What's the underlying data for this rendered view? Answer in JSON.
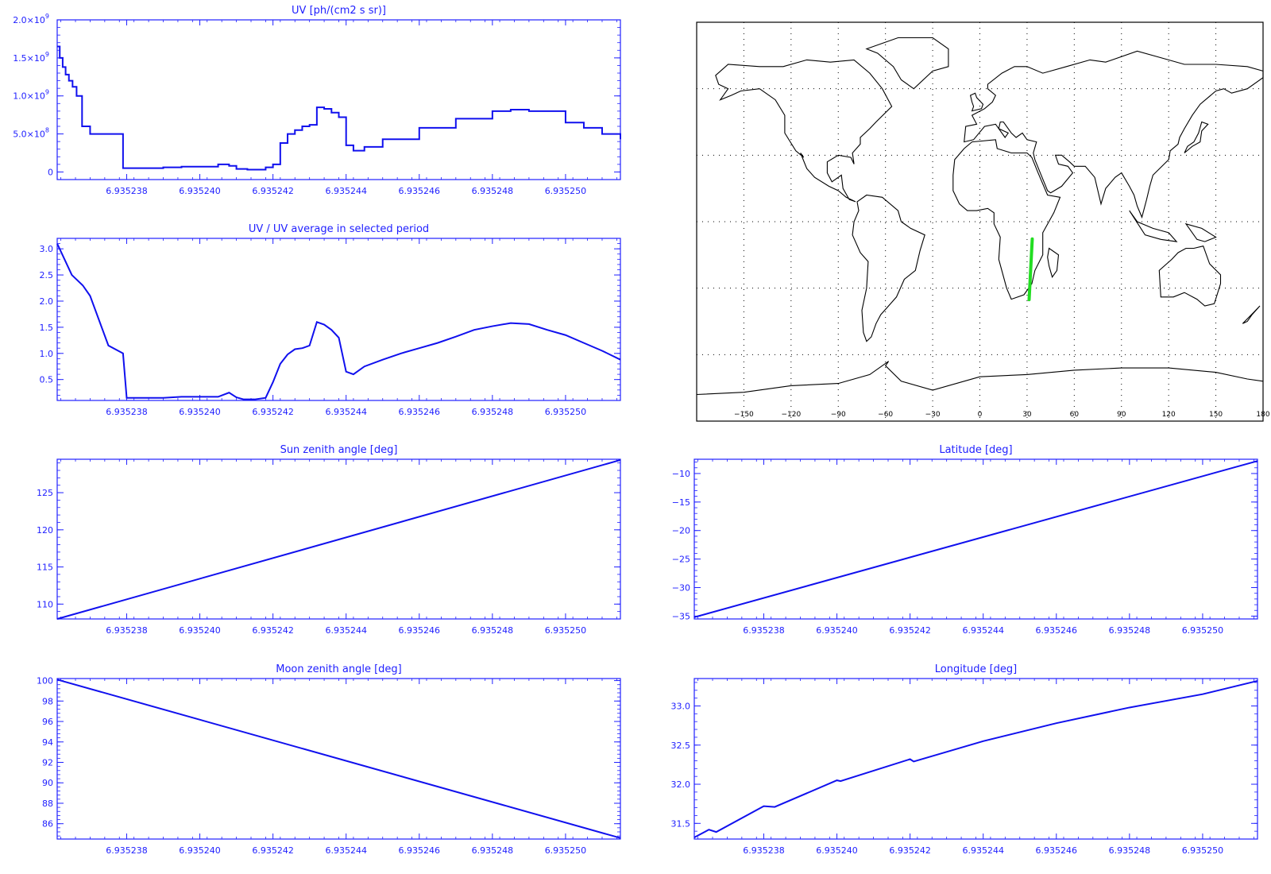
{
  "colors": {
    "axis": "#2020ff",
    "line": "#1010ee",
    "track": "#22dd22",
    "map": "#000000"
  },
  "chart_data": [
    {
      "type": "line",
      "step": true,
      "title": "UV [ph/(cm2 s sr)]",
      "xlim": [
        6.9352361,
        6.9352515
      ],
      "ylim": [
        -0.1,
        2.0
      ],
      "x_ticks": [
        "6.935238",
        "6.935240",
        "6.935242",
        "6.935244",
        "6.935246",
        "6.935248",
        "6.935250"
      ],
      "x_tick_values": [
        6.935238,
        6.93524,
        6.935242,
        6.935244,
        6.935246,
        6.935248,
        6.93525
      ],
      "y_ticks": [
        {
          "value": 0,
          "base": "0",
          "exp": ""
        },
        {
          "value": 0.5,
          "base": "5.0×10",
          "exp": "8"
        },
        {
          "value": 1.0,
          "base": "1.0×10",
          "exp": "9"
        },
        {
          "value": 1.5,
          "base": "1.5×10",
          "exp": "9"
        },
        {
          "value": 2.0,
          "base": "2.0×10",
          "exp": "9"
        }
      ],
      "x": [
        6.9352361,
        6.93523617,
        6.93523625,
        6.93523633,
        6.93523642,
        6.93523652,
        6.93523663,
        6.93523678,
        6.935237,
        6.93523745,
        6.9352379,
        6.9352385,
        6.935239,
        6.9352395,
        6.93524,
        6.9352405,
        6.9352408,
        6.935241,
        6.9352413,
        6.9352418,
        6.935242,
        6.9352422,
        6.9352424,
        6.9352426,
        6.9352428,
        6.935243,
        6.9352432,
        6.9352434,
        6.9352436,
        6.9352438,
        6.935244,
        6.9352442,
        6.9352445,
        6.935245,
        6.935246,
        6.935247,
        6.935248,
        6.9352485,
        6.935249,
        6.93525,
        6.9352505,
        6.935251,
        6.9352515
      ],
      "values": [
        1.65,
        1.5,
        1.38,
        1.28,
        1.2,
        1.12,
        1.0,
        0.6,
        0.5,
        0.5,
        0.05,
        0.05,
        0.06,
        0.07,
        0.07,
        0.1,
        0.08,
        0.04,
        0.03,
        0.06,
        0.1,
        0.38,
        0.5,
        0.55,
        0.6,
        0.62,
        0.85,
        0.83,
        0.78,
        0.72,
        0.35,
        0.28,
        0.33,
        0.43,
        0.58,
        0.7,
        0.8,
        0.82,
        0.8,
        0.65,
        0.58,
        0.5,
        0.43
      ]
    },
    {
      "type": "line",
      "title": "UV / UV average in selected period",
      "xlim": [
        6.9352361,
        6.9352515
      ],
      "ylim": [
        0.1,
        3.2
      ],
      "x_ticks": [
        "6.935238",
        "6.935240",
        "6.935242",
        "6.935244",
        "6.935246",
        "6.935248",
        "6.935250"
      ],
      "x_tick_values": [
        6.935238,
        6.93524,
        6.935242,
        6.935244,
        6.935246,
        6.935248,
        6.93525
      ],
      "y_ticks": [
        {
          "value": 0.5,
          "base": "0.5",
          "exp": ""
        },
        {
          "value": 1.0,
          "base": "1.0",
          "exp": ""
        },
        {
          "value": 1.5,
          "base": "1.5",
          "exp": ""
        },
        {
          "value": 2.0,
          "base": "2.0",
          "exp": ""
        },
        {
          "value": 2.5,
          "base": "2.5",
          "exp": ""
        },
        {
          "value": 3.0,
          "base": "3.0",
          "exp": ""
        }
      ],
      "x": [
        6.9352361,
        6.9352363,
        6.9352365,
        6.9352368,
        6.935237,
        6.9352375,
        6.9352379,
        6.935238,
        6.9352385,
        6.935239,
        6.9352395,
        6.93524,
        6.9352405,
        6.9352408,
        6.935241,
        6.9352412,
        6.9352415,
        6.9352418,
        6.935242,
        6.9352422,
        6.9352424,
        6.9352426,
        6.9352428,
        6.935243,
        6.9352432,
        6.9352434,
        6.9352436,
        6.9352438,
        6.935244,
        6.9352442,
        6.9352445,
        6.935245,
        6.9352455,
        6.935246,
        6.9352465,
        6.935247,
        6.9352475,
        6.935248,
        6.9352485,
        6.935249,
        6.9352495,
        6.93525,
        6.9352505,
        6.935251,
        6.9352515
      ],
      "values": [
        3.1,
        2.8,
        2.5,
        2.3,
        2.1,
        1.15,
        1.0,
        0.15,
        0.15,
        0.15,
        0.17,
        0.17,
        0.17,
        0.25,
        0.16,
        0.12,
        0.12,
        0.15,
        0.45,
        0.8,
        0.98,
        1.08,
        1.1,
        1.15,
        1.6,
        1.55,
        1.45,
        1.3,
        0.65,
        0.6,
        0.75,
        0.88,
        1.0,
        1.1,
        1.2,
        1.32,
        1.45,
        1.52,
        1.58,
        1.56,
        1.45,
        1.35,
        1.2,
        1.05,
        0.88
      ]
    },
    {
      "type": "line",
      "title": "Sun zenith angle [deg]",
      "xlim": [
        6.9352361,
        6.9352515
      ],
      "ylim": [
        108,
        129.5
      ],
      "x_ticks": [
        "6.935238",
        "6.935240",
        "6.935242",
        "6.935244",
        "6.935246",
        "6.935248",
        "6.935250"
      ],
      "x_tick_values": [
        6.935238,
        6.93524,
        6.935242,
        6.935244,
        6.935246,
        6.935248,
        6.93525
      ],
      "y_ticks": [
        {
          "value": 110,
          "base": "110",
          "exp": ""
        },
        {
          "value": 115,
          "base": "115",
          "exp": ""
        },
        {
          "value": 120,
          "base": "120",
          "exp": ""
        },
        {
          "value": 125,
          "base": "125",
          "exp": ""
        }
      ],
      "x": [
        6.9352361,
        6.9352515
      ],
      "values": [
        108.0,
        129.4
      ]
    },
    {
      "type": "line",
      "title": "Latitude [deg]",
      "xlim": [
        6.9352361,
        6.9352515
      ],
      "ylim": [
        -35.5,
        -7.5
      ],
      "x_ticks": [
        "6.935238",
        "6.935240",
        "6.935242",
        "6.935244",
        "6.935246",
        "6.935248",
        "6.935250"
      ],
      "x_tick_values": [
        6.935238,
        6.93524,
        6.935242,
        6.935244,
        6.935246,
        6.935248,
        6.93525
      ],
      "y_ticks": [
        {
          "value": -35,
          "base": "−35",
          "exp": ""
        },
        {
          "value": -30,
          "base": "−30",
          "exp": ""
        },
        {
          "value": -25,
          "base": "−25",
          "exp": ""
        },
        {
          "value": -20,
          "base": "−20",
          "exp": ""
        },
        {
          "value": -15,
          "base": "−15",
          "exp": ""
        },
        {
          "value": -10,
          "base": "−10",
          "exp": ""
        }
      ],
      "x": [
        6.9352361,
        6.9352515
      ],
      "values": [
        -35.2,
        -7.8
      ]
    },
    {
      "type": "line",
      "title": "Moon zenith angle [deg]",
      "xlim": [
        6.9352361,
        6.9352515
      ],
      "ylim": [
        84.5,
        100.2
      ],
      "x_ticks": [
        "6.935238",
        "6.935240",
        "6.935242",
        "6.935244",
        "6.935246",
        "6.935248",
        "6.935250"
      ],
      "x_tick_values": [
        6.935238,
        6.93524,
        6.935242,
        6.935244,
        6.935246,
        6.935248,
        6.93525
      ],
      "y_ticks": [
        {
          "value": 86,
          "base": "86",
          "exp": ""
        },
        {
          "value": 88,
          "base": "88",
          "exp": ""
        },
        {
          "value": 90,
          "base": "90",
          "exp": ""
        },
        {
          "value": 92,
          "base": "92",
          "exp": ""
        },
        {
          "value": 94,
          "base": "94",
          "exp": ""
        },
        {
          "value": 96,
          "base": "96",
          "exp": ""
        },
        {
          "value": 98,
          "base": "98",
          "exp": ""
        },
        {
          "value": 100,
          "base": "100",
          "exp": ""
        }
      ],
      "x": [
        6.9352361,
        6.9352515
      ],
      "values": [
        100.1,
        84.6
      ]
    },
    {
      "type": "line",
      "title": "Longitude [deg]",
      "xlim": [
        6.9352361,
        6.9352515
      ],
      "ylim": [
        31.3,
        33.35
      ],
      "x_ticks": [
        "6.935238",
        "6.935240",
        "6.935242",
        "6.935244",
        "6.935246",
        "6.935248",
        "6.935250"
      ],
      "x_tick_values": [
        6.935238,
        6.93524,
        6.935242,
        6.935244,
        6.935246,
        6.935248,
        6.93525
      ],
      "y_ticks": [
        {
          "value": 31.5,
          "base": "31.5",
          "exp": ""
        },
        {
          "value": 32.0,
          "base": "32.0",
          "exp": ""
        },
        {
          "value": 32.5,
          "base": "32.5",
          "exp": ""
        },
        {
          "value": 33.0,
          "base": "33.0",
          "exp": ""
        }
      ],
      "x": [
        6.9352361,
        6.9352365,
        6.9352367,
        6.935238,
        6.9352383,
        6.93524,
        6.9352401,
        6.935242,
        6.9352421,
        6.935244,
        6.935246,
        6.935248,
        6.93525,
        6.9352515
      ],
      "values": [
        31.32,
        31.42,
        31.39,
        31.72,
        31.71,
        32.05,
        32.04,
        32.32,
        32.29,
        32.55,
        32.78,
        32.98,
        33.15,
        33.32
      ]
    },
    {
      "type": "map",
      "xlim": [
        -180,
        180
      ],
      "ylim": [
        -90,
        90
      ],
      "x_ticks": [
        "−150",
        "−120",
        "−90",
        "−60",
        "−30",
        "0",
        "30",
        "60",
        "90",
        "120",
        "150",
        "180"
      ],
      "x_tick_values": [
        -150,
        -120,
        -90,
        -60,
        -30,
        0,
        30,
        60,
        90,
        120,
        150,
        180
      ],
      "grid": true,
      "track": {
        "lon": [
          31.3,
          33.3
        ],
        "lat": [
          -35.2,
          -7.8
        ]
      }
    }
  ]
}
